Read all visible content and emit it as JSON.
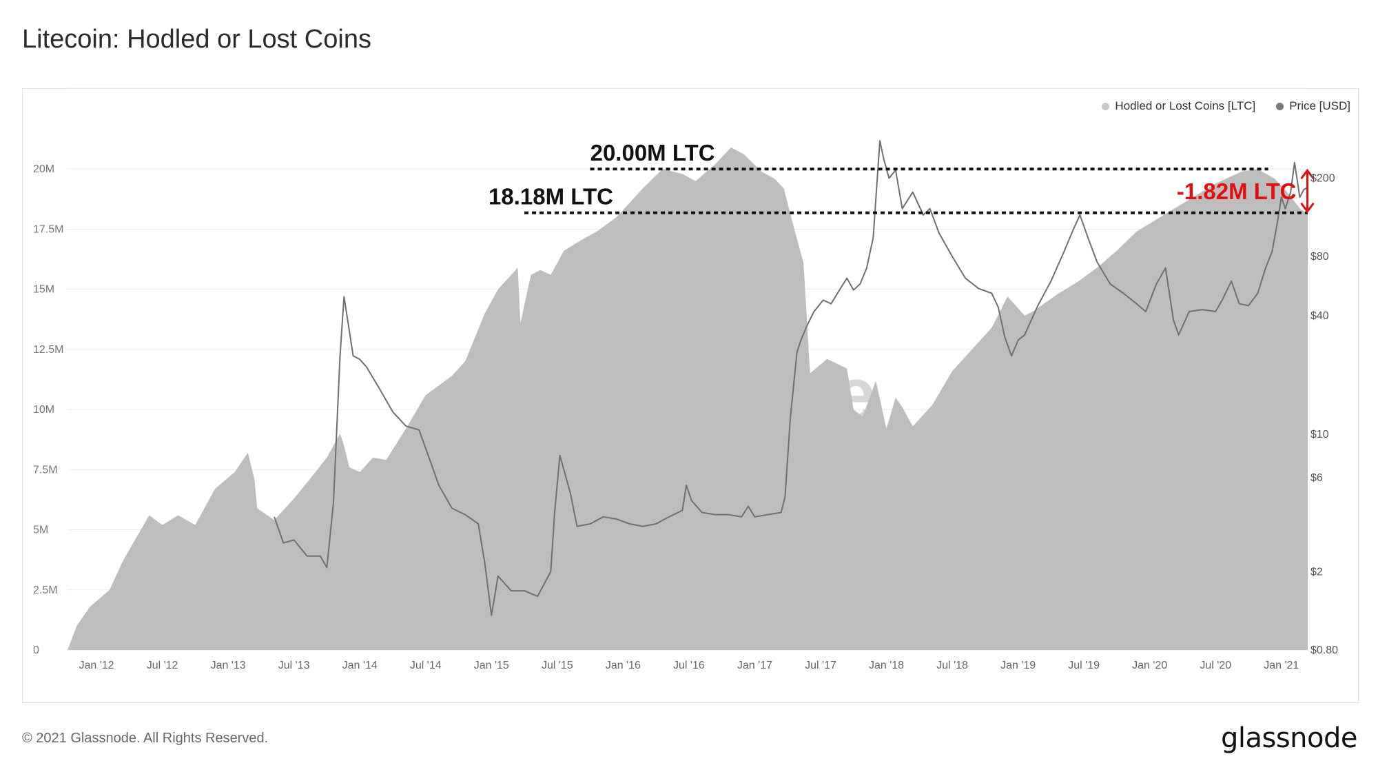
{
  "title": "Litecoin: Hodled or Lost Coins",
  "footer": "© 2021 Glassnode. All Rights Reserved.",
  "brand": "glassnode",
  "legend": [
    {
      "label": "Hodled or Lost Coins [LTC]",
      "color": "#c8c8c8"
    },
    {
      "label": "Price [USD]",
      "color": "#7a7a7a"
    }
  ],
  "chart_data": {
    "type": "area",
    "title": "Litecoin: Hodled or Lost Coins",
    "x_tick_labels": [
      "Jan '12",
      "Jul '12",
      "Jan '13",
      "Jul '13",
      "Jan '14",
      "Jul '14",
      "Jan '15",
      "Jul '15",
      "Jan '16",
      "Jul '16",
      "Jan '17",
      "Jul '17",
      "Jan '18",
      "Jul '18",
      "Jan '19",
      "Jul '19",
      "Jan '20",
      "Jul '20",
      "Jan '21"
    ],
    "x_tick_values": [
      2012.0,
      2012.5,
      2013.0,
      2013.5,
      2014.0,
      2014.5,
      2015.0,
      2015.5,
      2016.0,
      2016.5,
      2017.0,
      2017.5,
      2018.0,
      2018.5,
      2019.0,
      2019.5,
      2020.0,
      2020.5,
      2021.0
    ],
    "xlim": [
      2011.78,
      2021.2
    ],
    "y_left": {
      "label": "Hodled or Lost Coins [LTC]",
      "ylim": [
        0,
        22500000
      ],
      "tick_values": [
        0,
        2500000,
        5000000,
        7500000,
        10000000,
        12500000,
        15000000,
        17500000,
        20000000
      ],
      "tick_labels": [
        "0",
        "2.5M",
        "5M",
        "7.5M",
        "10M",
        "12.5M",
        "15M",
        "17.5M",
        "20M"
      ]
    },
    "y_right": {
      "label": "Price [USD]",
      "scale": "log",
      "ylim": [
        0.8,
        450
      ],
      "tick_values": [
        0.8,
        2,
        6,
        10,
        40,
        80,
        200
      ],
      "tick_labels": [
        "$0.80",
        "$2",
        "$6",
        "$10",
        "$40",
        "$80",
        "$200"
      ]
    },
    "series": [
      {
        "name": "Hodled or Lost Coins [LTC]",
        "color": "#bdbdbd",
        "points": [
          [
            2011.78,
            0
          ],
          [
            2011.85,
            1000000
          ],
          [
            2011.95,
            1800000
          ],
          [
            2012.1,
            2500000
          ],
          [
            2012.2,
            3700000
          ],
          [
            2012.4,
            5600000
          ],
          [
            2012.5,
            5200000
          ],
          [
            2012.62,
            5600000
          ],
          [
            2012.75,
            5200000
          ],
          [
            2012.9,
            6700000
          ],
          [
            2013.05,
            7400000
          ],
          [
            2013.15,
            8200000
          ],
          [
            2013.2,
            7100000
          ],
          [
            2013.22,
            5900000
          ],
          [
            2013.35,
            5400000
          ],
          [
            2013.5,
            6300000
          ],
          [
            2013.62,
            7100000
          ],
          [
            2013.75,
            8000000
          ],
          [
            2013.85,
            9000000
          ],
          [
            2013.88,
            8500000
          ],
          [
            2013.92,
            7600000
          ],
          [
            2014.0,
            7400000
          ],
          [
            2014.1,
            8000000
          ],
          [
            2014.2,
            7900000
          ],
          [
            2014.35,
            9200000
          ],
          [
            2014.5,
            10600000
          ],
          [
            2014.7,
            11400000
          ],
          [
            2014.8,
            12000000
          ],
          [
            2014.95,
            14000000
          ],
          [
            2015.05,
            15000000
          ],
          [
            2015.2,
            15900000
          ],
          [
            2015.22,
            13600000
          ],
          [
            2015.3,
            15600000
          ],
          [
            2015.37,
            15800000
          ],
          [
            2015.45,
            15600000
          ],
          [
            2015.55,
            16600000
          ],
          [
            2015.7,
            17100000
          ],
          [
            2015.8,
            17400000
          ],
          [
            2015.95,
            18000000
          ],
          [
            2016.05,
            18600000
          ],
          [
            2016.15,
            19200000
          ],
          [
            2016.3,
            20000000
          ],
          [
            2016.45,
            19800000
          ],
          [
            2016.55,
            19500000
          ],
          [
            2016.7,
            20200000
          ],
          [
            2016.82,
            20900000
          ],
          [
            2016.92,
            20600000
          ],
          [
            2017.05,
            19900000
          ],
          [
            2017.15,
            19600000
          ],
          [
            2017.22,
            19200000
          ],
          [
            2017.3,
            17500000
          ],
          [
            2017.37,
            16100000
          ],
          [
            2017.42,
            11500000
          ],
          [
            2017.55,
            12100000
          ],
          [
            2017.7,
            11700000
          ],
          [
            2017.75,
            10000000
          ],
          [
            2017.82,
            9700000
          ],
          [
            2017.92,
            11200000
          ],
          [
            2018.0,
            9200000
          ],
          [
            2018.07,
            10500000
          ],
          [
            2018.12,
            10100000
          ],
          [
            2018.2,
            9300000
          ],
          [
            2018.35,
            10200000
          ],
          [
            2018.5,
            11600000
          ],
          [
            2018.65,
            12500000
          ],
          [
            2018.8,
            13400000
          ],
          [
            2018.92,
            14700000
          ],
          [
            2019.05,
            13900000
          ],
          [
            2019.12,
            14100000
          ],
          [
            2019.3,
            14800000
          ],
          [
            2019.45,
            15300000
          ],
          [
            2019.6,
            15900000
          ],
          [
            2019.75,
            16600000
          ],
          [
            2019.9,
            17400000
          ],
          [
            2020.05,
            17900000
          ],
          [
            2020.2,
            18400000
          ],
          [
            2020.35,
            18900000
          ],
          [
            2020.5,
            19400000
          ],
          [
            2020.7,
            19900000
          ],
          [
            2020.82,
            20000000
          ],
          [
            2020.95,
            19600000
          ],
          [
            2021.05,
            19000000
          ],
          [
            2021.15,
            18300000
          ],
          [
            2021.2,
            18180000
          ]
        ]
      },
      {
        "name": "Price [USD]",
        "color": "#6f6f6f",
        "points": [
          [
            2013.35,
            3.8
          ],
          [
            2013.42,
            2.8
          ],
          [
            2013.5,
            2.9
          ],
          [
            2013.6,
            2.4
          ],
          [
            2013.7,
            2.4
          ],
          [
            2013.75,
            2.1
          ],
          [
            2013.8,
            4.5
          ],
          [
            2013.85,
            25
          ],
          [
            2013.88,
            50
          ],
          [
            2013.95,
            25
          ],
          [
            2014.0,
            24
          ],
          [
            2014.05,
            22
          ],
          [
            2014.15,
            17
          ],
          [
            2014.25,
            13
          ],
          [
            2014.35,
            11
          ],
          [
            2014.45,
            10.5
          ],
          [
            2014.5,
            8.5
          ],
          [
            2014.6,
            5.5
          ],
          [
            2014.7,
            4.2
          ],
          [
            2014.8,
            3.9
          ],
          [
            2014.9,
            3.5
          ],
          [
            2014.95,
            2.2
          ],
          [
            2015.0,
            1.2
          ],
          [
            2015.05,
            1.9
          ],
          [
            2015.15,
            1.6
          ],
          [
            2015.25,
            1.6
          ],
          [
            2015.35,
            1.5
          ],
          [
            2015.45,
            2.0
          ],
          [
            2015.48,
            4.0
          ],
          [
            2015.52,
            7.8
          ],
          [
            2015.6,
            5.0
          ],
          [
            2015.65,
            3.4
          ],
          [
            2015.75,
            3.5
          ],
          [
            2015.85,
            3.8
          ],
          [
            2015.95,
            3.7
          ],
          [
            2016.05,
            3.5
          ],
          [
            2016.15,
            3.4
          ],
          [
            2016.25,
            3.5
          ],
          [
            2016.35,
            3.8
          ],
          [
            2016.45,
            4.1
          ],
          [
            2016.48,
            5.5
          ],
          [
            2016.52,
            4.6
          ],
          [
            2016.6,
            4.0
          ],
          [
            2016.7,
            3.9
          ],
          [
            2016.8,
            3.9
          ],
          [
            2016.9,
            3.8
          ],
          [
            2016.95,
            4.3
          ],
          [
            2017.0,
            3.8
          ],
          [
            2017.1,
            3.9
          ],
          [
            2017.2,
            4.0
          ],
          [
            2017.23,
            4.8
          ],
          [
            2017.27,
            12
          ],
          [
            2017.32,
            26
          ],
          [
            2017.35,
            30
          ],
          [
            2017.4,
            36
          ],
          [
            2017.45,
            42
          ],
          [
            2017.52,
            48
          ],
          [
            2017.58,
            46
          ],
          [
            2017.65,
            55
          ],
          [
            2017.7,
            62
          ],
          [
            2017.75,
            54
          ],
          [
            2017.8,
            58
          ],
          [
            2017.85,
            70
          ],
          [
            2017.9,
            100
          ],
          [
            2017.95,
            310
          ],
          [
            2017.98,
            250
          ],
          [
            2018.02,
            200
          ],
          [
            2018.07,
            220
          ],
          [
            2018.12,
            140
          ],
          [
            2018.2,
            170
          ],
          [
            2018.28,
            130
          ],
          [
            2018.33,
            140
          ],
          [
            2018.4,
            105
          ],
          [
            2018.5,
            80
          ],
          [
            2018.6,
            62
          ],
          [
            2018.7,
            55
          ],
          [
            2018.8,
            52
          ],
          [
            2018.85,
            44
          ],
          [
            2018.9,
            31
          ],
          [
            2018.95,
            25
          ],
          [
            2019.0,
            30
          ],
          [
            2019.05,
            32
          ],
          [
            2019.15,
            45
          ],
          [
            2019.25,
            60
          ],
          [
            2019.35,
            85
          ],
          [
            2019.42,
            110
          ],
          [
            2019.47,
            130
          ],
          [
            2019.53,
            100
          ],
          [
            2019.6,
            75
          ],
          [
            2019.7,
            58
          ],
          [
            2019.8,
            52
          ],
          [
            2019.9,
            46
          ],
          [
            2019.97,
            42
          ],
          [
            2020.05,
            58
          ],
          [
            2020.12,
            70
          ],
          [
            2020.18,
            38
          ],
          [
            2020.22,
            32
          ],
          [
            2020.3,
            42
          ],
          [
            2020.4,
            43
          ],
          [
            2020.5,
            42
          ],
          [
            2020.55,
            48
          ],
          [
            2020.62,
            60
          ],
          [
            2020.68,
            46
          ],
          [
            2020.75,
            45
          ],
          [
            2020.82,
            52
          ],
          [
            2020.88,
            70
          ],
          [
            2020.93,
            85
          ],
          [
            2020.97,
            120
          ],
          [
            2021.0,
            160
          ],
          [
            2021.03,
            140
          ],
          [
            2021.07,
            170
          ],
          [
            2021.1,
            240
          ],
          [
            2021.14,
            160
          ],
          [
            2021.17,
            175
          ],
          [
            2021.2,
            180
          ]
        ]
      }
    ],
    "annotations": [
      {
        "text": "20.00M LTC",
        "value": 20000000,
        "x_from": 2015.75,
        "x_to": 2020.9,
        "color": "#111111"
      },
      {
        "text": "18.18M LTC",
        "value": 18180000,
        "x_from": 2015.25,
        "x_to": 2021.2,
        "color": "#111111"
      },
      {
        "text": "-1.82M LTC",
        "value": -1820000,
        "x": 2020.7,
        "color": "#e01010"
      }
    ]
  }
}
